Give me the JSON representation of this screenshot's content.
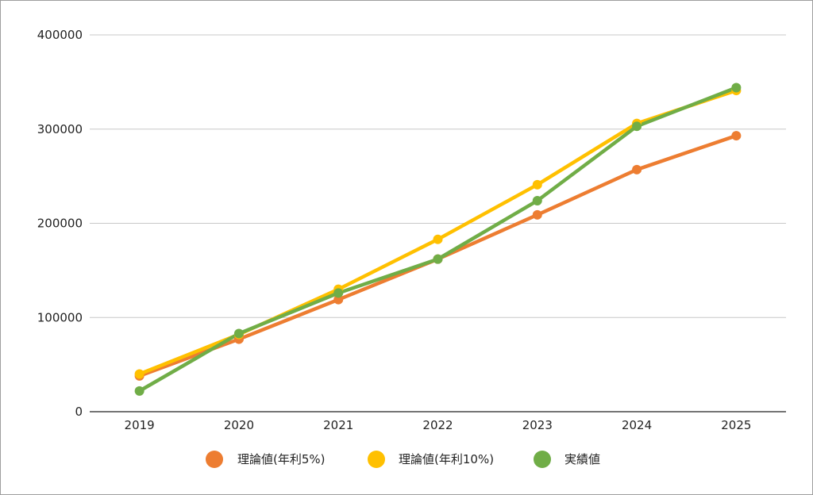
{
  "chart_data": {
    "type": "line",
    "title": "",
    "xlabel": "",
    "ylabel": "",
    "categories": [
      "2019",
      "2020",
      "2021",
      "2022",
      "2023",
      "2024",
      "2025"
    ],
    "ylim": [
      0,
      400000
    ],
    "yticks": [
      "0",
      "100000",
      "200000",
      "300000",
      "400000"
    ],
    "grid": true,
    "legend_position": "bottom",
    "series": [
      {
        "name": "理論値(年利5%)",
        "color": "#ED7D31",
        "values": [
          38000,
          77000,
          119000,
          162000,
          209000,
          257000,
          293000
        ]
      },
      {
        "name": "理論値(年利10%)",
        "color": "#FFC000",
        "values": [
          40000,
          82000,
          130000,
          183000,
          241000,
          306000,
          341000
        ]
      },
      {
        "name": "実績値",
        "color": "#70AD47",
        "values": [
          22000,
          83000,
          126000,
          162000,
          224000,
          303000,
          344000
        ]
      }
    ]
  }
}
